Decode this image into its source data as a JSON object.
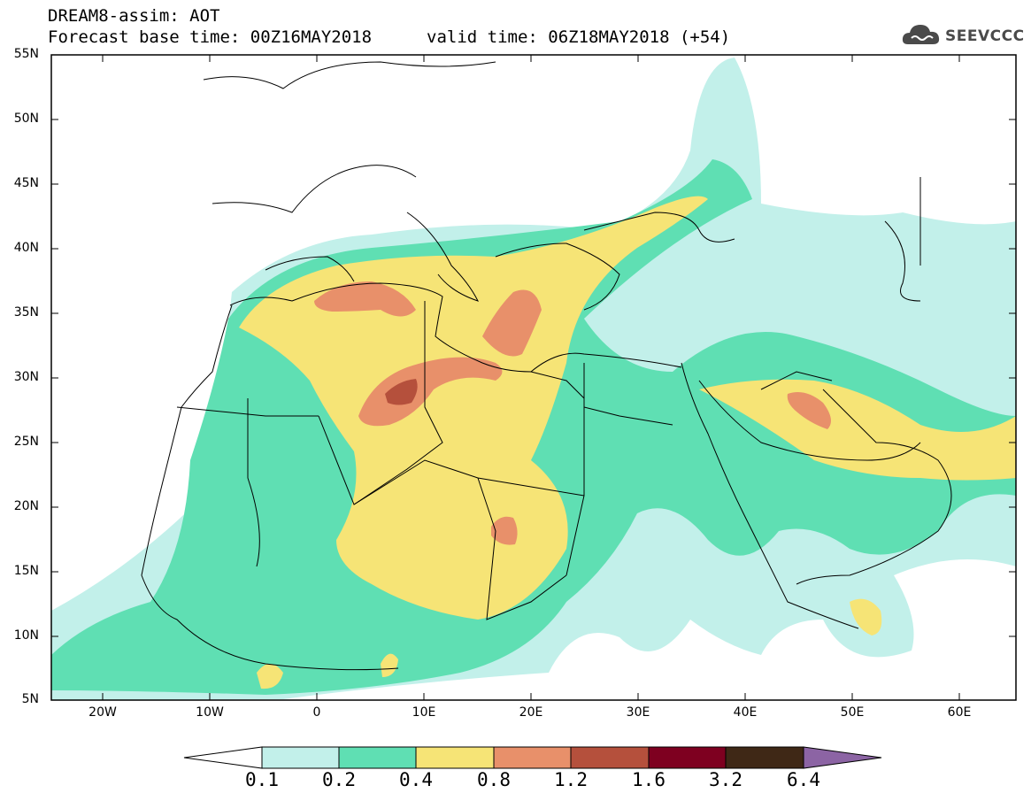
{
  "header": {
    "title_line1": "DREAM8-assim: AOT",
    "title_line2": "Forecast base time: 00Z16MAY2018",
    "valid_time": "valid time: 06Z18MAY2018 (+54)",
    "logo_text": "SEEVCCC",
    "logo_icon": "cloud-icon"
  },
  "map": {
    "lat_labels": [
      "55N",
      "50N",
      "45N",
      "40N",
      "35N",
      "30N",
      "25N",
      "20N",
      "15N",
      "10N",
      "5N"
    ],
    "lon_labels": [
      "20W",
      "10W",
      "0",
      "10E",
      "20E",
      "30E",
      "40E",
      "50E",
      "60E"
    ],
    "lon_range": [
      -25,
      65
    ],
    "lat_range": [
      5,
      55
    ]
  },
  "colorbar": {
    "labels": [
      "0.1",
      "0.2",
      "0.4",
      "0.8",
      "1.2",
      "1.6",
      "3.2",
      "6.4"
    ],
    "colors": [
      "#c2f0ea",
      "#5fdfb3",
      "#f6e476",
      "#e8906a",
      "#b5503c",
      "#7e0020",
      "#3f2816",
      "#8c64a4"
    ],
    "under_color": "#ffffff"
  },
  "colors": {
    "land_line": "#000000",
    "frame": "#000000"
  }
}
